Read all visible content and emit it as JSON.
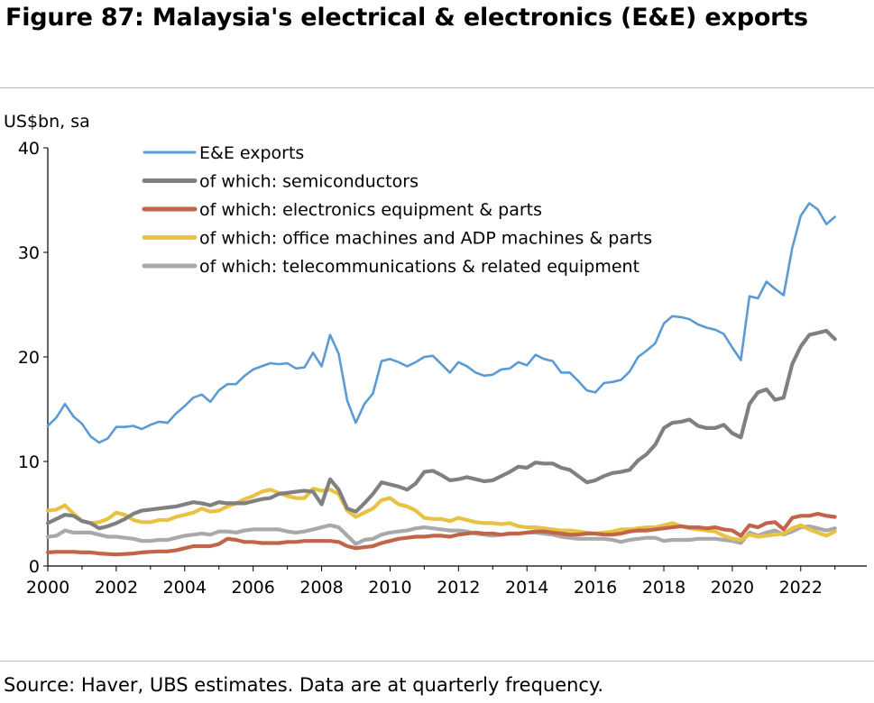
{
  "title": "Figure 87: Malaysia's electrical & electronics (E&E) exports",
  "source": "Source: Haver, UBS estimates. Data are at quarterly frequency.",
  "chart_data": {
    "type": "line",
    "ylabel": "US$bn, sa",
    "ylim": [
      0,
      40
    ],
    "yticks": [
      0,
      10,
      20,
      30,
      40
    ],
    "xlim": [
      2000,
      2023.35
    ],
    "xticks": [
      2000,
      2002,
      2004,
      2006,
      2008,
      2010,
      2012,
      2014,
      2016,
      2018,
      2020,
      2022
    ],
    "grid": false,
    "legend_position": "top-left",
    "x": [
      2000,
      2000.25,
      2000.5,
      2000.75,
      2001,
      2001.25,
      2001.5,
      2001.75,
      2002,
      2002.25,
      2002.5,
      2002.75,
      2003,
      2003.25,
      2003.5,
      2003.75,
      2004,
      2004.25,
      2004.5,
      2004.75,
      2005,
      2005.25,
      2005.5,
      2005.75,
      2006,
      2006.25,
      2006.5,
      2006.75,
      2007,
      2007.25,
      2007.5,
      2007.75,
      2008,
      2008.25,
      2008.5,
      2008.75,
      2009,
      2009.25,
      2009.5,
      2009.75,
      2010,
      2010.25,
      2010.5,
      2010.75,
      2011,
      2011.25,
      2011.5,
      2011.75,
      2012,
      2012.25,
      2012.5,
      2012.75,
      2013,
      2013.25,
      2013.5,
      2013.75,
      2014,
      2014.25,
      2014.5,
      2014.75,
      2015,
      2015.25,
      2015.5,
      2015.75,
      2016,
      2016.25,
      2016.5,
      2016.75,
      2017,
      2017.25,
      2017.5,
      2017.75,
      2018,
      2018.25,
      2018.5,
      2018.75,
      2019,
      2019.25,
      2019.5,
      2019.75,
      2020,
      2020.25,
      2020.5,
      2020.75,
      2021,
      2021.25,
      2021.5,
      2021.75,
      2022,
      2022.25,
      2022.5,
      2022.75,
      2023
    ],
    "series": [
      {
        "name": "E&E exports",
        "color": "#5b9bd5",
        "values": [
          13.4,
          14.2,
          15.5,
          14.3,
          13.6,
          12.4,
          11.8,
          12.2,
          13.3,
          13.3,
          13.4,
          13.1,
          13.5,
          13.8,
          13.7,
          14.6,
          15.3,
          16.1,
          16.4,
          15.7,
          16.8,
          17.4,
          17.4,
          18.2,
          18.8,
          19.1,
          19.4,
          19.3,
          19.4,
          18.9,
          19.0,
          20.4,
          19.1,
          22.1,
          20.3,
          15.8,
          13.7,
          15.5,
          16.5,
          19.6,
          19.8,
          19.5,
          19.1,
          19.5,
          20.0,
          20.1,
          19.3,
          18.5,
          19.5,
          19.1,
          18.5,
          18.2,
          18.3,
          18.8,
          18.9,
          19.5,
          19.2,
          20.2,
          19.8,
          19.6,
          18.5,
          18.5,
          17.7,
          16.8,
          16.6,
          17.5,
          17.6,
          17.8,
          18.6,
          20.0,
          20.6,
          21.3,
          23.2,
          23.9,
          23.8,
          23.6,
          23.1,
          22.8,
          22.6,
          22.2,
          20.9,
          19.7,
          25.8,
          25.6,
          27.2,
          26.5,
          25.9,
          30.4,
          33.5,
          34.7,
          34.1,
          32.7,
          33.4
        ]
      },
      {
        "name": "of which: semiconductors",
        "color": "#808080",
        "values": [
          4.1,
          4.5,
          4.9,
          4.8,
          4.3,
          4.1,
          3.6,
          3.8,
          4.1,
          4.5,
          5.0,
          5.3,
          5.4,
          5.5,
          5.6,
          5.7,
          5.9,
          6.1,
          6.0,
          5.8,
          6.1,
          6.0,
          6.0,
          6.0,
          6.2,
          6.4,
          6.5,
          6.9,
          7.0,
          7.1,
          7.2,
          7.1,
          5.9,
          8.3,
          7.3,
          5.5,
          5.2,
          6.0,
          6.9,
          8.0,
          7.8,
          7.6,
          7.3,
          7.9,
          9.0,
          9.1,
          8.7,
          8.2,
          8.3,
          8.5,
          8.3,
          8.1,
          8.2,
          8.6,
          9.0,
          9.5,
          9.4,
          9.9,
          9.8,
          9.8,
          9.4,
          9.2,
          8.6,
          8.0,
          8.2,
          8.6,
          8.9,
          9.0,
          9.2,
          10.1,
          10.7,
          11.6,
          13.2,
          13.7,
          13.8,
          14.0,
          13.4,
          13.2,
          13.2,
          13.5,
          12.7,
          12.3,
          15.5,
          16.6,
          16.9,
          15.9,
          16.1,
          19.3,
          21.0,
          22.1,
          22.3,
          22.5,
          21.7
        ]
      },
      {
        "name": "of which: electronics equipment & parts",
        "color": "#c0654a",
        "values": [
          1.3,
          1.35,
          1.35,
          1.35,
          1.3,
          1.3,
          1.2,
          1.15,
          1.1,
          1.15,
          1.2,
          1.3,
          1.35,
          1.4,
          1.4,
          1.5,
          1.7,
          1.9,
          1.9,
          1.9,
          2.1,
          2.6,
          2.5,
          2.3,
          2.3,
          2.2,
          2.2,
          2.2,
          2.3,
          2.3,
          2.4,
          2.4,
          2.4,
          2.4,
          2.3,
          1.9,
          1.7,
          1.8,
          1.9,
          2.2,
          2.4,
          2.6,
          2.7,
          2.8,
          2.8,
          2.9,
          2.9,
          2.8,
          3.0,
          3.1,
          3.2,
          3.1,
          3.1,
          3.0,
          3.1,
          3.1,
          3.2,
          3.3,
          3.3,
          3.2,
          3.1,
          3.0,
          3.0,
          3.1,
          3.1,
          3.0,
          3.0,
          3.1,
          3.3,
          3.4,
          3.4,
          3.5,
          3.6,
          3.7,
          3.8,
          3.7,
          3.7,
          3.6,
          3.7,
          3.5,
          3.4,
          2.9,
          3.9,
          3.7,
          4.1,
          4.2,
          3.5,
          4.6,
          4.8,
          4.8,
          5.0,
          4.8,
          4.7
        ]
      },
      {
        "name": "of which: office machines and ADP machines & parts",
        "color": "#e8c244",
        "values": [
          5.3,
          5.4,
          5.8,
          5.0,
          4.3,
          4.1,
          4.2,
          4.5,
          5.1,
          4.9,
          4.4,
          4.2,
          4.2,
          4.4,
          4.4,
          4.7,
          4.9,
          5.1,
          5.5,
          5.2,
          5.3,
          5.7,
          6.0,
          6.4,
          6.7,
          7.1,
          7.3,
          7.0,
          6.7,
          6.5,
          6.5,
          7.4,
          7.2,
          7.3,
          6.9,
          5.3,
          4.7,
          5.1,
          5.5,
          6.3,
          6.5,
          5.9,
          5.7,
          5.3,
          4.6,
          4.5,
          4.5,
          4.3,
          4.6,
          4.4,
          4.2,
          4.1,
          4.1,
          4.0,
          4.1,
          3.8,
          3.7,
          3.7,
          3.6,
          3.5,
          3.4,
          3.4,
          3.3,
          3.2,
          3.1,
          3.2,
          3.3,
          3.5,
          3.5,
          3.6,
          3.7,
          3.7,
          3.9,
          4.1,
          3.8,
          3.6,
          3.5,
          3.4,
          3.3,
          2.9,
          2.6,
          2.5,
          3.0,
          2.8,
          2.9,
          3.0,
          3.1,
          3.6,
          3.9,
          3.5,
          3.2,
          2.9,
          3.3
        ]
      },
      {
        "name": "of which: telecommunications & related equipment",
        "color": "#a9a9a9",
        "values": [
          2.8,
          2.9,
          3.4,
          3.2,
          3.2,
          3.2,
          3.0,
          2.8,
          2.8,
          2.7,
          2.6,
          2.4,
          2.4,
          2.5,
          2.5,
          2.7,
          2.9,
          3.0,
          3.1,
          3.0,
          3.3,
          3.3,
          3.2,
          3.4,
          3.5,
          3.5,
          3.5,
          3.5,
          3.3,
          3.2,
          3.3,
          3.5,
          3.7,
          3.9,
          3.7,
          2.9,
          2.1,
          2.5,
          2.6,
          3.0,
          3.2,
          3.3,
          3.4,
          3.6,
          3.7,
          3.6,
          3.5,
          3.4,
          3.4,
          3.3,
          3.1,
          3.0,
          2.9,
          3.0,
          3.1,
          3.1,
          3.2,
          3.2,
          3.1,
          3.0,
          2.8,
          2.7,
          2.6,
          2.6,
          2.6,
          2.6,
          2.5,
          2.3,
          2.5,
          2.6,
          2.7,
          2.7,
          2.4,
          2.5,
          2.5,
          2.5,
          2.6,
          2.6,
          2.6,
          2.5,
          2.4,
          2.2,
          3.2,
          2.9,
          3.2,
          3.4,
          3.0,
          3.3,
          3.7,
          3.8,
          3.6,
          3.4,
          3.6
        ]
      }
    ]
  }
}
